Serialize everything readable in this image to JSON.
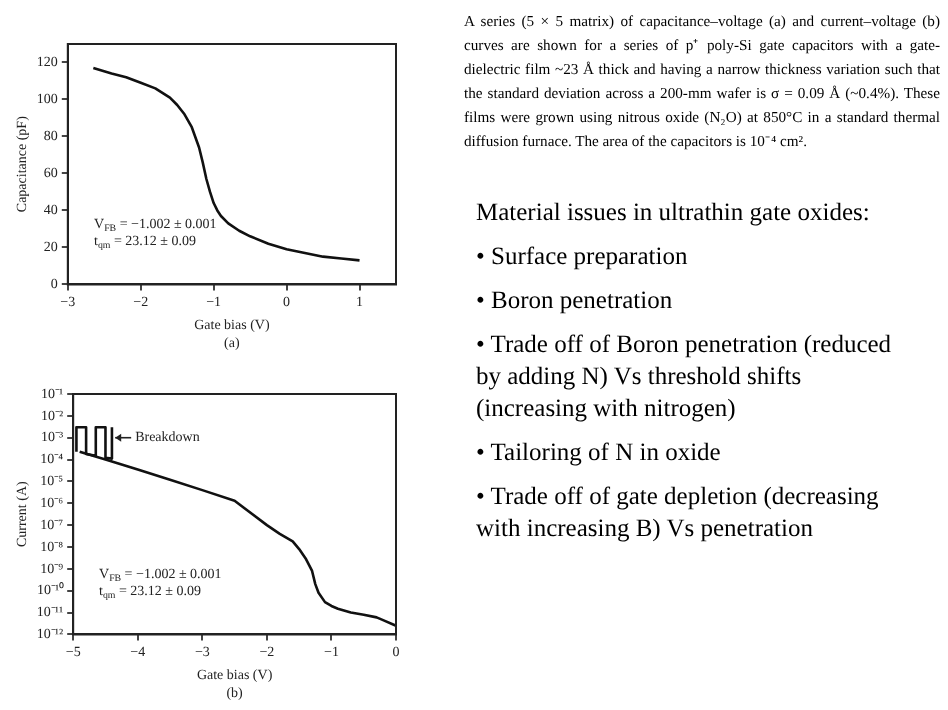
{
  "chart_data": [
    {
      "type": "line",
      "xlabel": "Gate bias (V)",
      "ylabel": "Capacitance (pF)",
      "subtitle": "(a)",
      "xlim": [
        -3,
        1.5
      ],
      "xticks": [
        {
          "value": -3,
          "label": "−3"
        },
        {
          "value": -2,
          "label": "−2"
        },
        {
          "value": -1,
          "label": "−1"
        },
        {
          "value": 0,
          "label": "0"
        },
        1
      ],
      "ylim": [
        0,
        130
      ],
      "yticks": [
        {
          "value": 0,
          "label": "0"
        },
        20,
        40,
        60,
        80,
        100,
        120
      ],
      "grid": false,
      "legend": false,
      "marker": "none",
      "line_style": "solid",
      "series": [
        {
          "color": "#111111",
          "x": [
            -2.65,
            -2.4,
            -2.2,
            -2,
            -1.8,
            -1.6,
            -1.5,
            -1.4,
            -1.3,
            -1.2,
            -1.15,
            -1.1,
            -1.05,
            -1,
            -0.95,
            -0.9,
            -0.8,
            -0.65,
            -0.5,
            -0.25,
            0,
            0.25,
            0.5,
            0.75,
            1
          ],
          "values": [
            117,
            114,
            112,
            109,
            106,
            101,
            97,
            92,
            85,
            74,
            66,
            57,
            50,
            44,
            40,
            37,
            33,
            29,
            26,
            22,
            19,
            17,
            15,
            14,
            13
          ]
        }
      ],
      "annotations": [
        "V$_{FB}$ = −1.002 ± 0.001",
        "t$_{qm}$ = 23.12 ± 0.09"
      ]
    },
    {
      "type": "line",
      "xlabel": "Gate bias (V)",
      "ylabel": "Current (A)",
      "subtitle": "(b)",
      "log": "y",
      "xlim": [
        -5,
        0
      ],
      "xticks": [
        {
          "value": -5,
          "label": "−5"
        },
        {
          "value": -4,
          "label": "−4"
        },
        {
          "value": -3,
          "label": "−3"
        },
        {
          "value": -2,
          "label": "−2"
        },
        {
          "value": -1,
          "label": "−1"
        },
        {
          "value": 0,
          "label": "0"
        }
      ],
      "ylim": [
        1e-12,
        0.1
      ],
      "yticks": [
        {
          "value": 1e-12,
          "label": "10⁻¹²"
        },
        {
          "value": 1e-11,
          "label": "10⁻¹¹"
        },
        {
          "value": 1e-10,
          "label": "10⁻¹⁰"
        },
        {
          "value": 1e-09,
          "label": "10⁻⁹"
        },
        {
          "value": 1e-08,
          "label": "10⁻⁸"
        },
        {
          "value": 1e-07,
          "label": "10⁻⁷"
        },
        {
          "value": 1e-06,
          "label": "10⁻⁶"
        },
        {
          "value": 1e-05,
          "label": "10⁻⁵"
        },
        {
          "value": 0.0001,
          "label": "10⁻⁴"
        },
        {
          "value": 0.001,
          "label": "10⁻³"
        },
        {
          "value": 0.01,
          "label": "10⁻²"
        },
        {
          "value": 0.1,
          "label": "10⁻¹"
        }
      ],
      "grid": false,
      "legend": false,
      "marker": "none",
      "line_style": "solid",
      "series": [
        {
          "color": "#111111",
          "x": [
            -4.9,
            -4.5,
            -4,
            -3.5,
            -3,
            -2.5,
            -2,
            -1.8,
            -1.6,
            -1.5,
            -1.4,
            -1.3,
            -1.25,
            -1.2,
            -1.1,
            -1,
            -0.9,
            -0.7,
            -0.5,
            -0.3,
            -0.2,
            0
          ],
          "values": [
            0.00023,
            0.0001,
            3.5e-05,
            1.2e-05,
            4e-06,
            1.3e-06,
            1e-07,
            4e-08,
            1.8e-08,
            8e-09,
            3e-09,
            8e-10,
            2e-10,
            8e-11,
            3e-11,
            2e-11,
            1.5e-11,
            1e-11,
            8e-12,
            6e-12,
            4.5e-12,
            2.5e-12
          ]
        },
        {
          "color": "#111111",
          "x": [
            -4.95,
            -4.95,
            -4.8,
            -4.8,
            -4.65,
            -4.65,
            -4.5,
            -4.5,
            -4.4,
            -4.4
          ],
          "values": [
            0.00023,
            0.003,
            0.003,
            0.00018,
            0.00015,
            0.003,
            0.003,
            0.00012,
            0.00011,
            0.003
          ]
        }
      ],
      "annotations": [
        "V$_{FB}$ = −1.002 ± 0.001",
        "t$_{qm}$ = 23.12 ± 0.09",
        {
          "text": "Breakdown",
          "x": -4.35,
          "y": 0.001
        }
      ]
    },
    {
      "type": "other",
      "annotations": [
        "A series (5 × 5 matrix) of capacitance–voltage (a) and current–voltage (b) curves are shown for a series of p⁺ poly-Si gate capacitors with a gate-dielectric film ~23 Å thick and having a narrow thickness variation such that the standard deviation across a 200-mm wafer is σ = 0.09 Å (~0.4%). These films were grown using nitrous oxide (N₂O) at 850°C in a standard thermal diffusion furnace. The area of the capacitors is 10⁻⁴ cm².",
        "Material issues in ultrathin gate oxides:",
        "• Surface preparation",
        "• Boron penetration",
        "• Trade off of Boron penetration (reduced by adding N) Vs threshold shifts (increasing with nitrogen)",
        "• Tailoring of N in oxide",
        "• Trade off of gate depletion (decreasing with increasing B) Vs penetration"
      ]
    }
  ]
}
